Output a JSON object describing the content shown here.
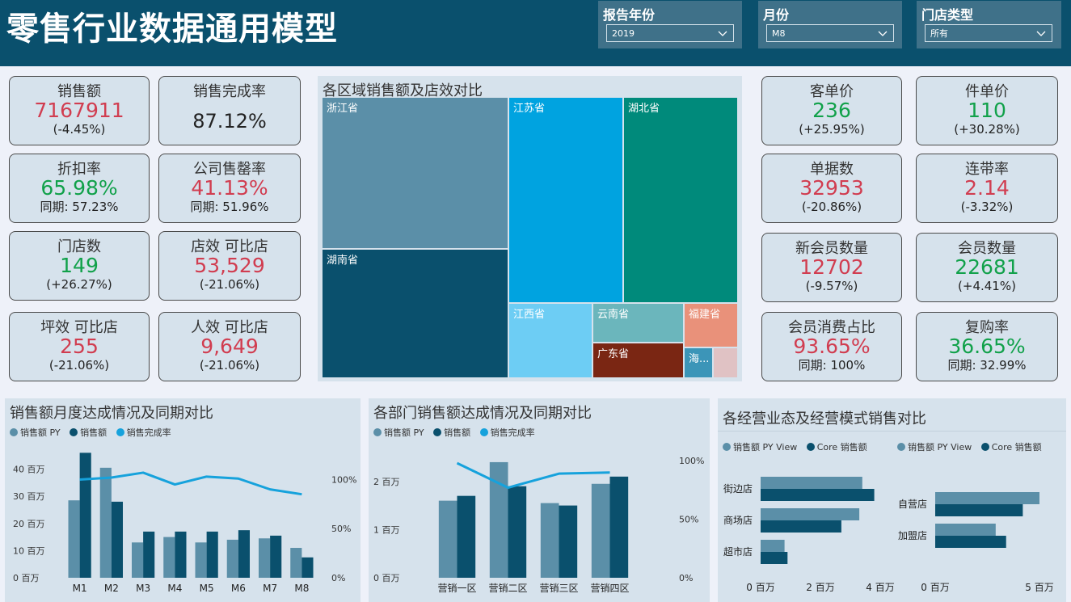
{
  "header": {
    "title": "零售行业数据通用模型"
  },
  "filters": [
    {
      "label": "报告年份",
      "value": "2019"
    },
    {
      "label": "月份",
      "value": "M8"
    },
    {
      "label": "门店类型",
      "value": "所有"
    }
  ],
  "kpi_left": [
    {
      "label": "销售额",
      "value": "7167911",
      "value_color": "red",
      "sub": "(-4.45%)"
    },
    {
      "label": "销售完成率",
      "value": "87.12%",
      "value_color": "dark",
      "sub": ""
    },
    {
      "label": "折扣率",
      "value": "65.98%",
      "value_color": "green",
      "sub": "同期: 57.23%"
    },
    {
      "label": "公司售罄率",
      "value": "41.13%",
      "value_color": "red",
      "sub": "同期: 51.96%"
    },
    {
      "label": "门店数",
      "value": "149",
      "value_color": "green",
      "sub": "(+26.27%)"
    },
    {
      "label": "店效 可比店",
      "value": "53,529",
      "value_color": "red",
      "sub": "(-21.06%)"
    },
    {
      "label": "坪效 可比店",
      "value": "255",
      "value_color": "red",
      "sub": "(-21.06%)"
    },
    {
      "label": "人效 可比店",
      "value": "9,649",
      "value_color": "red",
      "sub": "(-21.06%)"
    }
  ],
  "kpi_right": [
    {
      "label": "客单价",
      "value": "236",
      "value_color": "green",
      "sub": "(+25.95%)"
    },
    {
      "label": "件单价",
      "value": "110",
      "value_color": "green",
      "sub": "(+30.28%)"
    },
    {
      "label": "单据数",
      "value": "32953",
      "value_color": "red",
      "sub": "(-20.86%)"
    },
    {
      "label": "连带率",
      "value": "2.14",
      "value_color": "red",
      "sub": "(-3.32%)"
    },
    {
      "label": "新会员数量",
      "value": "12702",
      "value_color": "red",
      "sub": "(-9.57%)"
    },
    {
      "label": "会员数量",
      "value": "22681",
      "value_color": "green",
      "sub": "(+4.41%)"
    },
    {
      "label": "会员消费占比",
      "value": "93.65%",
      "value_color": "red",
      "sub": "同期: 100%"
    },
    {
      "label": "复购率",
      "value": "36.65%",
      "value_color": "green",
      "sub": "同期: 32.99%"
    }
  ],
  "colors": {
    "py": "#5b8fa8",
    "cur": "#0a506d",
    "rate": "#16a2dc",
    "red": "#d13d50",
    "green": "#11a14a"
  },
  "chart_data": [
    {
      "type": "treemap",
      "title": "各区域销售额及店效对比",
      "items": [
        {
          "name": "浙江省",
          "color": "#5b8fa8"
        },
        {
          "name": "湖南省",
          "color": "#0a506d"
        },
        {
          "name": "江苏省",
          "color": "#00a3e0"
        },
        {
          "name": "湖北省",
          "color": "#008a7b"
        },
        {
          "name": "江西省",
          "color": "#6dcdf4"
        },
        {
          "name": "云南省",
          "color": "#6bb6bc"
        },
        {
          "name": "广东省",
          "color": "#7a2613"
        },
        {
          "name": "福建省",
          "color": "#e9917a"
        },
        {
          "name": "海...",
          "color": "#3c95b8"
        },
        {
          "name": "",
          "color": "#e0c2c4"
        }
      ]
    },
    {
      "type": "bar",
      "title": "销售额月度达成情况及同期对比",
      "categories": [
        "M1",
        "M2",
        "M3",
        "M4",
        "M5",
        "M6",
        "M7",
        "M8"
      ],
      "series": [
        {
          "name": "销售额 PY",
          "values": [
            28.5,
            40.5,
            13,
            15,
            13,
            14,
            14.5,
            11
          ]
        },
        {
          "name": "销售额",
          "values": [
            46,
            28,
            17,
            17,
            17,
            17.5,
            15.5,
            7.5
          ]
        },
        {
          "name": "销售完成率",
          "axis": "right",
          "values": [
            100,
            102,
            107,
            95,
            103,
            101,
            90,
            85
          ]
        }
      ],
      "y_ticks": [
        "0 百万",
        "10 百万",
        "20 百万",
        "30 百万",
        "40 百万"
      ],
      "y2_ticks": [
        "0%",
        "50%",
        "100%"
      ],
      "ylim": [
        0,
        47
      ],
      "y2lim": [
        0,
        130
      ]
    },
    {
      "type": "bar",
      "title": "各部门销售额达成情况及同期对比",
      "categories": [
        "营销一区",
        "营销二区",
        "营销三区",
        "营销四区"
      ],
      "series": [
        {
          "name": "销售额 PY",
          "values": [
            1.6,
            2.4,
            1.55,
            1.95
          ]
        },
        {
          "name": "销售额",
          "values": [
            1.7,
            1.9,
            1.5,
            2.1
          ]
        },
        {
          "name": "销售完成率",
          "axis": "right",
          "values": [
            98,
            77,
            89,
            90
          ]
        }
      ],
      "y_ticks": [
        "0 百万",
        "1 百万",
        "2 百万"
      ],
      "y2_ticks": [
        "0%",
        "50%",
        "100%"
      ],
      "ylim": [
        0,
        2.55
      ],
      "y2lim": [
        0,
        105
      ]
    },
    {
      "type": "bar",
      "orientation": "horizontal",
      "title": "各经营业态及经营模式销售对比",
      "groups": [
        {
          "legend": [
            "销售额 PY View",
            "Core 销售额"
          ],
          "categories": [
            "街边店",
            "商场店",
            "超市店"
          ],
          "py": [
            3.4,
            3.3,
            0.8
          ],
          "cur": [
            3.8,
            2.7,
            0.9
          ],
          "x_ticks": [
            "0 百万",
            "2 百万",
            "4 百万"
          ],
          "xlim": [
            0,
            5.2
          ]
        },
        {
          "legend": [
            "销售额 PY View",
            "Core 销售额"
          ],
          "categories": [
            "自营店",
            "加盟店"
          ],
          "py": [
            5.0,
            2.9
          ],
          "cur": [
            4.2,
            3.4
          ],
          "x_ticks": [
            "0 百万",
            "5 百万"
          ],
          "xlim": [
            0,
            7
          ]
        }
      ]
    }
  ]
}
